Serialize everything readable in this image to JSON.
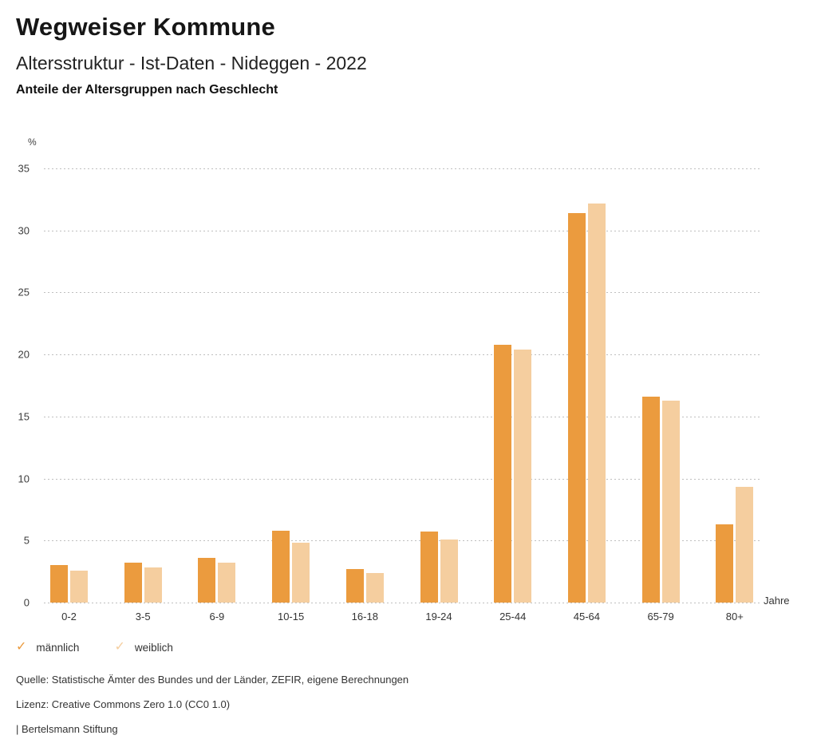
{
  "header": {
    "app_title": "Wegweiser Kommune",
    "chart_title": "Altersstruktur - Ist-Daten - Nideggen - 2022",
    "chart_subtitle": "Anteile der Altersgruppen nach Geschlecht"
  },
  "chart_data": {
    "type": "bar",
    "title": "Anteile der Altersgruppen nach Geschlecht",
    "categories": [
      "0-2",
      "3-5",
      "6-9",
      "10-15",
      "16-18",
      "19-24",
      "25-44",
      "45-64",
      "65-79",
      "80+"
    ],
    "series": [
      {
        "name": "männlich",
        "color": "#EB9B3E",
        "values": [
          3.0,
          3.2,
          3.6,
          5.8,
          2.7,
          5.7,
          20.8,
          31.4,
          16.6,
          6.3
        ]
      },
      {
        "name": "weiblich",
        "color": "#F5CE9F",
        "values": [
          2.6,
          2.8,
          3.2,
          4.8,
          2.4,
          5.1,
          20.4,
          32.2,
          16.3,
          9.3
        ]
      }
    ],
    "xlabel": "Jahre",
    "ylabel": "%",
    "ylim": [
      0,
      35
    ],
    "yticks": [
      0,
      5,
      10,
      15,
      20,
      25,
      30,
      35
    ],
    "grid": "horizontal-dotted",
    "legend_position": "bottom-left"
  },
  "legend": {
    "check_glyph": "✓"
  },
  "footer": {
    "source": "Quelle: Statistische Ämter des Bundes und der Länder, ZEFIR, eigene Berechnungen",
    "license": "Lizenz: Creative Commons Zero 1.0 (CC0 1.0)",
    "attribution": "| Bertelsmann Stiftung"
  }
}
